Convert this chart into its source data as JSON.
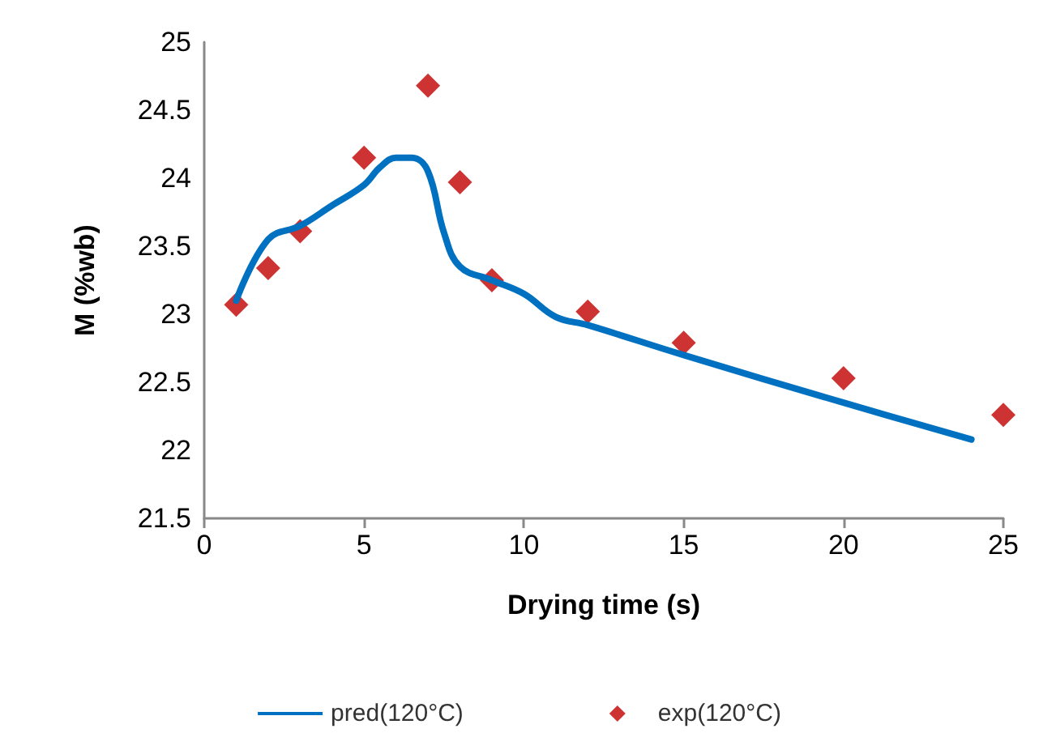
{
  "chart_data": {
    "type": "line",
    "xlabel": "Drying time (s)",
    "ylabel": "M (%wb)",
    "xlim": [
      0,
      25
    ],
    "xticks": [
      0,
      5,
      10,
      15,
      20,
      25
    ],
    "ylim": [
      21.5,
      25
    ],
    "yticks": [
      21.5,
      22,
      22.5,
      23,
      23.5,
      24,
      24.5,
      25
    ],
    "grid": false,
    "legend": "bottom",
    "series": [
      {
        "name": "pred(120°C)",
        "color": "#0070c0",
        "marker": "none",
        "line_style": "solid",
        "x": [
          1,
          2,
          3,
          4,
          5,
          5.5,
          6,
          6.5,
          7,
          7.5,
          8,
          9,
          10,
          11,
          12,
          15,
          20,
          24
        ],
        "values": [
          23.1,
          23.55,
          23.65,
          23.8,
          23.95,
          24.08,
          24.15,
          24.15,
          24.05,
          23.6,
          23.35,
          23.25,
          23.15,
          22.98,
          22.92,
          22.7,
          22.35,
          22.08
        ]
      },
      {
        "name": "exp(120°C)",
        "type": "scatter",
        "color": "#c00000",
        "marker": "diamond",
        "x": [
          1,
          2,
          3,
          5,
          7,
          8,
          9,
          12,
          15,
          20,
          25
        ],
        "values": [
          23.07,
          23.34,
          23.61,
          24.15,
          24.68,
          23.97,
          23.25,
          23.02,
          22.79,
          22.53,
          22.26
        ]
      }
    ]
  }
}
